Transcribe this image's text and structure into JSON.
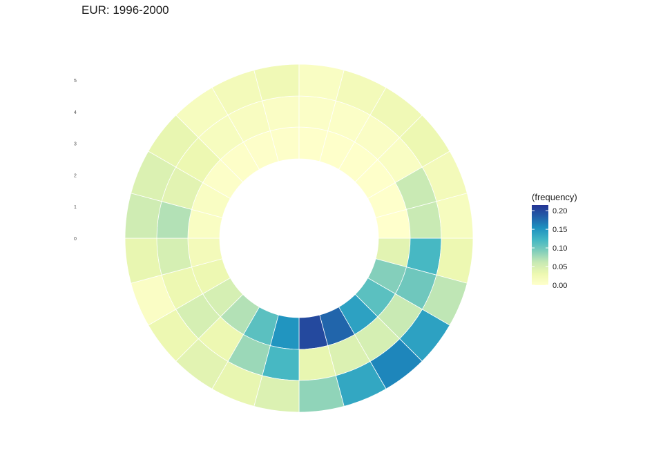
{
  "chart_data": {
    "type": "heatmap",
    "coord": "polar",
    "title": "EUR: 1996-2000",
    "radial_tick_labels": [
      "0",
      "1",
      "2",
      "3",
      "4",
      "5"
    ],
    "sectors_per_ring": 24,
    "palette": [
      "#ffffcc",
      "#edf8b1",
      "#c7e9b4",
      "#7fcdbb",
      "#41b6c4",
      "#1d91c0",
      "#225ea8",
      "#253494"
    ],
    "legend": {
      "title": "(frequency)",
      "position": "right",
      "ticks": [
        "0.00",
        "0.05",
        "0.10",
        "0.15",
        "0.20"
      ],
      "tick_values": [
        0,
        0.05,
        0.1,
        0.15,
        0.2
      ],
      "range": [
        0,
        0.215
      ]
    },
    "rings": [
      {
        "name": "1",
        "values": [
          0.04,
          0.09,
          0.11,
          0.14,
          0.18,
          0.2,
          0.15,
          0.11,
          0.07,
          0.05,
          0.03,
          0.02,
          0.01,
          0.01,
          0.005,
          0.004,
          0.003,
          0.003,
          0.002,
          0.002,
          0.002,
          0.002,
          0.001,
          0
        ]
      },
      {
        "name": "2",
        "values": [
          0.12,
          0.1,
          0.06,
          0.05,
          0.045,
          0.035,
          0.12,
          0.08,
          0.03,
          0.05,
          0.03,
          0.05,
          0.07,
          0.04,
          0.03,
          0.015,
          0.012,
          0.008,
          0.006,
          0.006,
          0.008,
          0.01,
          0.06,
          0.06
        ]
      },
      {
        "name": "3",
        "values": [
          0.03,
          0.065,
          0.14,
          0.16,
          0.135,
          0.085,
          0.045,
          0.035,
          0.04,
          0.03,
          0.008,
          0.035,
          0.055,
          0.045,
          0.035,
          0.015,
          0.02,
          0.025,
          0.01,
          0.02,
          0.025,
          0.03,
          0.02,
          0.015
        ]
      }
    ]
  }
}
